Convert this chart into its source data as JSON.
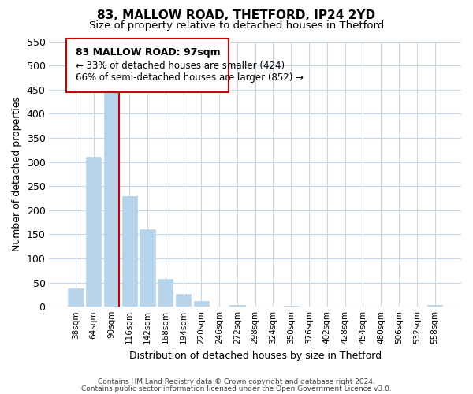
{
  "title1": "83, MALLOW ROAD, THETFORD, IP24 2YD",
  "title2": "Size of property relative to detached houses in Thetford",
  "xlabel": "Distribution of detached houses by size in Thetford",
  "ylabel": "Number of detached properties",
  "bar_labels": [
    "38sqm",
    "64sqm",
    "90sqm",
    "116sqm",
    "142sqm",
    "168sqm",
    "194sqm",
    "220sqm",
    "246sqm",
    "272sqm",
    "298sqm",
    "324sqm",
    "350sqm",
    "376sqm",
    "402sqm",
    "428sqm",
    "454sqm",
    "480sqm",
    "506sqm",
    "532sqm",
    "558sqm"
  ],
  "bar_values": [
    38,
    311,
    457,
    229,
    160,
    57,
    26,
    12,
    0,
    3,
    0,
    0,
    2,
    0,
    0,
    0,
    0,
    0,
    0,
    0,
    3
  ],
  "bar_color": "#b8d4ea",
  "property_line_label": "83 MALLOW ROAD: 97sqm",
  "annotation_smaller": "← 33% of detached houses are smaller (424)",
  "annotation_larger": "66% of semi-detached houses are larger (852) →",
  "ylim_max": 550,
  "yticks": [
    0,
    50,
    100,
    150,
    200,
    250,
    300,
    350,
    400,
    450,
    500,
    550
  ],
  "footer1": "Contains HM Land Registry data © Crown copyright and database right 2024.",
  "footer2": "Contains public sector information licensed under the Open Government Licence v3.0.",
  "red_line_color": "#cc0000",
  "annotation_box_edge": "#cc0000",
  "annotation_box_face": "#ffffff",
  "grid_color": "#c8d8e8",
  "bg_color": "#ffffff"
}
